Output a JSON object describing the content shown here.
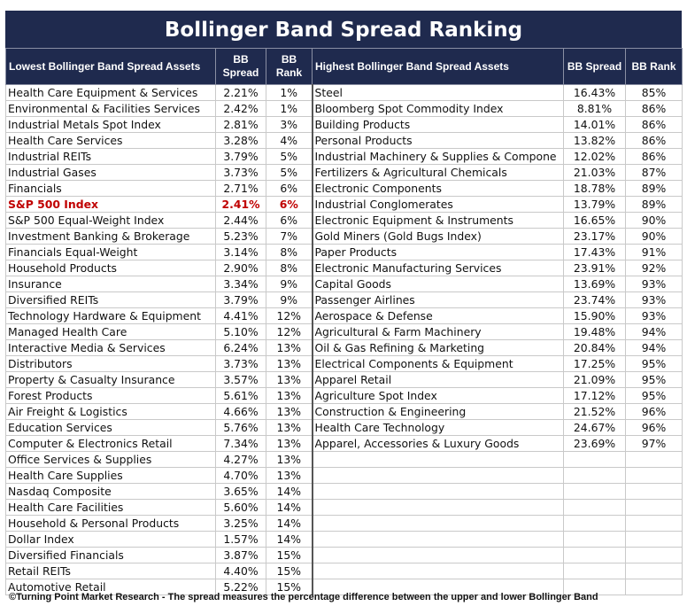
{
  "title": "Bollinger Band Spread Ranking",
  "headers": {
    "left_assets": "Lowest Bollinger Band Spread Assets",
    "left_spread_line1": "BB",
    "left_spread_line2": "Spread",
    "left_rank_line1": "BB",
    "left_rank_line2": "Rank",
    "right_assets": "Highest Bollinger Band Spread Assets",
    "right_spread": "BB Spread",
    "right_rank": "BB Rank"
  },
  "lowest": [
    {
      "name": "Health Care Equipment & Services",
      "spread": "2.21%",
      "rank": "1%"
    },
    {
      "name": "Environmental & Facilities Services",
      "spread": "2.42%",
      "rank": "1%"
    },
    {
      "name": "Industrial Metals Spot Index",
      "spread": "2.81%",
      "rank": "3%"
    },
    {
      "name": "Health Care Services",
      "spread": "3.28%",
      "rank": "4%"
    },
    {
      "name": "Industrial REITs",
      "spread": "3.79%",
      "rank": "5%"
    },
    {
      "name": "Industrial Gases",
      "spread": "3.73%",
      "rank": "5%"
    },
    {
      "name": "Financials",
      "spread": "2.71%",
      "rank": "6%"
    },
    {
      "name": "S&P 500 Index",
      "spread": "2.41%",
      "rank": "6%",
      "highlight": true
    },
    {
      "name": "S&P 500 Equal-Weight Index",
      "spread": "2.44%",
      "rank": "6%"
    },
    {
      "name": "Investment Banking & Brokerage",
      "spread": "5.23%",
      "rank": "7%"
    },
    {
      "name": "Financials Equal-Weight",
      "spread": "3.14%",
      "rank": "8%"
    },
    {
      "name": "Household Products",
      "spread": "2.90%",
      "rank": "8%"
    },
    {
      "name": "Insurance",
      "spread": "3.34%",
      "rank": "9%"
    },
    {
      "name": "Diversified REITs",
      "spread": "3.79%",
      "rank": "9%"
    },
    {
      "name": "Technology Hardware & Equipment",
      "spread": "4.41%",
      "rank": "12%"
    },
    {
      "name": "Managed Health Care",
      "spread": "5.10%",
      "rank": "12%"
    },
    {
      "name": "Interactive Media & Services",
      "spread": "6.24%",
      "rank": "13%"
    },
    {
      "name": "Distributors",
      "spread": "3.73%",
      "rank": "13%"
    },
    {
      "name": "Property & Casualty Insurance",
      "spread": "3.57%",
      "rank": "13%"
    },
    {
      "name": "Forest Products",
      "spread": "5.61%",
      "rank": "13%"
    },
    {
      "name": "Air Freight & Logistics",
      "spread": "4.66%",
      "rank": "13%"
    },
    {
      "name": "Education Services",
      "spread": "5.76%",
      "rank": "13%"
    },
    {
      "name": "Computer & Electronics Retail",
      "spread": "7.34%",
      "rank": "13%"
    },
    {
      "name": "Office Services & Supplies",
      "spread": "4.27%",
      "rank": "13%"
    },
    {
      "name": "Health Care Supplies",
      "spread": "4.70%",
      "rank": "13%"
    },
    {
      "name": "Nasdaq Composite",
      "spread": "3.65%",
      "rank": "14%"
    },
    {
      "name": "Health Care Facilities",
      "spread": "5.60%",
      "rank": "14%"
    },
    {
      "name": "Household & Personal Products",
      "spread": "3.25%",
      "rank": "14%"
    },
    {
      "name": "Dollar Index",
      "spread": "1.57%",
      "rank": "14%"
    },
    {
      "name": "Diversified Financials",
      "spread": "3.87%",
      "rank": "15%"
    },
    {
      "name": "Retail REITs",
      "spread": "4.40%",
      "rank": "15%"
    },
    {
      "name": "Automotive Retail",
      "spread": "5.22%",
      "rank": "15%"
    }
  ],
  "highest": [
    {
      "name": "Steel",
      "spread": "16.43%",
      "rank": "85%"
    },
    {
      "name": "Bloomberg Spot Commodity Index",
      "spread": "8.81%",
      "rank": "86%"
    },
    {
      "name": "Building Products",
      "spread": "14.01%",
      "rank": "86%"
    },
    {
      "name": "Personal Products",
      "spread": "13.82%",
      "rank": "86%"
    },
    {
      "name": "Industrial Machinery & Supplies & Compone",
      "spread": "12.02%",
      "rank": "86%"
    },
    {
      "name": "Fertilizers & Agricultural Chemicals",
      "spread": "21.03%",
      "rank": "87%"
    },
    {
      "name": "Electronic Components",
      "spread": "18.78%",
      "rank": "89%"
    },
    {
      "name": "Industrial Conglomerates",
      "spread": "13.79%",
      "rank": "89%"
    },
    {
      "name": "Electronic Equipment & Instruments",
      "spread": "16.65%",
      "rank": "90%"
    },
    {
      "name": "Gold Miners (Gold Bugs Index)",
      "spread": "23.17%",
      "rank": "90%"
    },
    {
      "name": "Paper Products",
      "spread": "17.43%",
      "rank": "91%"
    },
    {
      "name": "Electronic Manufacturing Services",
      "spread": "23.91%",
      "rank": "92%"
    },
    {
      "name": "Capital Goods",
      "spread": "13.69%",
      "rank": "93%"
    },
    {
      "name": "Passenger Airlines",
      "spread": "23.74%",
      "rank": "93%"
    },
    {
      "name": "Aerospace & Defense",
      "spread": "15.90%",
      "rank": "93%"
    },
    {
      "name": "Agricultural & Farm Machinery",
      "spread": "19.48%",
      "rank": "94%"
    },
    {
      "name": "Oil & Gas Refining & Marketing",
      "spread": "20.84%",
      "rank": "94%"
    },
    {
      "name": "Electrical Components & Equipment",
      "spread": "17.25%",
      "rank": "95%"
    },
    {
      "name": "Apparel Retail",
      "spread": "21.09%",
      "rank": "95%"
    },
    {
      "name": "Agriculture Spot Index",
      "spread": "17.12%",
      "rank": "95%"
    },
    {
      "name": "Construction & Engineering",
      "spread": "21.52%",
      "rank": "96%"
    },
    {
      "name": "Health Care Technology",
      "spread": "24.67%",
      "rank": "96%"
    },
    {
      "name": "Apparel, Accessories & Luxury Goods",
      "spread": "23.69%",
      "rank": "97%"
    }
  ],
  "footer": "©Turning Point Market Research - The spread measures the percentage difference between the upper and lower Bollinger Band",
  "colors": {
    "header_bg": "#1f2a4e",
    "highlight_text": "#c00000"
  }
}
